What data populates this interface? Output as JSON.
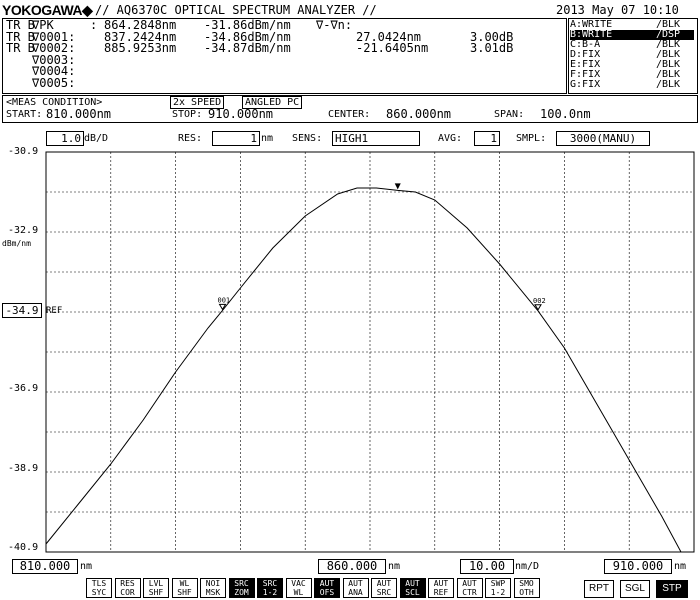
{
  "header": {
    "brand": "YOKOGAWA",
    "model": "// AQ6370C OPTICAL SPECTRUM ANALYZER //",
    "datetime": "2013 May 07 10:10"
  },
  "markers_panel": {
    "rows": [
      {
        "prefix": "TR B",
        "name": "∇PK",
        "sep": ":",
        "wl": "864.2848nm",
        "lvl": "-31.86dBm/nm",
        "extra1": "∇-∇n:",
        "extra2": "",
        "extra3": ""
      },
      {
        "prefix": "TR B",
        "name": "∇0001:",
        "sep": "",
        "wl": "837.2424nm",
        "lvl": "-34.86dBm/nm",
        "extra1": "",
        "extra2": "27.0424nm",
        "extra3": "3.00dB"
      },
      {
        "prefix": "TR B",
        "name": "∇0002:",
        "sep": "",
        "wl": "885.9253nm",
        "lvl": "-34.87dBm/nm",
        "extra1": "",
        "extra2": "-21.6405nm",
        "extra3": "3.01dB"
      },
      {
        "prefix": "",
        "name": "∇0003:",
        "sep": "",
        "wl": "",
        "lvl": "",
        "extra1": "",
        "extra2": "",
        "extra3": ""
      },
      {
        "prefix": "",
        "name": "∇0004:",
        "sep": "",
        "wl": "",
        "lvl": "",
        "extra1": "",
        "extra2": "",
        "extra3": ""
      },
      {
        "prefix": "",
        "name": "∇0005:",
        "sep": "",
        "wl": "",
        "lvl": "",
        "extra1": "",
        "extra2": "",
        "extra3": ""
      }
    ]
  },
  "traces": [
    {
      "name": "A:WRITE",
      "mode": "/BLK",
      "active": false
    },
    {
      "name": "B:WRITE",
      "mode": "/DSP",
      "active": true
    },
    {
      "name": "C:B-A",
      "mode": "/BLK",
      "active": false
    },
    {
      "name": "D:FIX",
      "mode": "/BLK",
      "active": false
    },
    {
      "name": "E:FIX",
      "mode": "/BLK",
      "active": false
    },
    {
      "name": "F:FIX",
      "mode": "/BLK",
      "active": false
    },
    {
      "name": "G:FIX",
      "mode": "/BLK",
      "active": false
    }
  ],
  "meas": {
    "label": "<MEAS CONDITION>",
    "speed": "2x SPEED",
    "connector": "ANGLED PC",
    "start_label": "START:",
    "start": "810.000nm",
    "stop_label": "STOP:",
    "stop": "910.000nm",
    "center_label": "CENTER:",
    "center": "860.000nm",
    "span_label": "SPAN:",
    "span": "100.0nm"
  },
  "settings": {
    "scale_value": "1.0",
    "scale_unit": "dB/D",
    "res_label": "RES:",
    "res_value": "1",
    "res_unit": "nm",
    "sens_label": "SENS:",
    "sens_value": "HIGH1",
    "avg_label": "AVG:",
    "avg_value": "1",
    "smpl_label": "SMPL:",
    "smpl_value": "3000(MANU)"
  },
  "yaxis": {
    "ticks": [
      "-30.9",
      "-32.9",
      "-34.9",
      "-36.9",
      "-38.9",
      "-40.9"
    ],
    "unit": "dBm/nm",
    "ref_label": "REF"
  },
  "xaxis": {
    "start": "810.000",
    "start_unit": "nm",
    "center": "860.000",
    "center_unit": "nm",
    "div": "10.00",
    "div_unit": "nm/D",
    "stop": "910.000",
    "stop_unit": "nm"
  },
  "chart_data": {
    "type": "line",
    "xlim": [
      810,
      910
    ],
    "ylim": [
      -40.9,
      -30.9
    ],
    "ylabel": "dBm/nm",
    "grid": true,
    "series": [
      {
        "x": [
          810,
          815,
          820,
          825,
          830,
          835,
          837.24,
          840,
          845,
          850,
          855,
          858,
          861,
          864.28,
          867,
          870,
          875,
          880,
          885.93,
          890,
          895,
          900,
          905,
          908,
          910
        ],
        "y": [
          -40.7,
          -39.7,
          -38.7,
          -37.6,
          -36.4,
          -35.3,
          -34.86,
          -34.3,
          -33.3,
          -32.5,
          -31.95,
          -31.8,
          -31.8,
          -31.86,
          -31.9,
          -32.1,
          -32.8,
          -33.7,
          -34.87,
          -35.8,
          -37.2,
          -38.6,
          -40.0,
          -40.9,
          -40.9
        ]
      }
    ],
    "markers": [
      {
        "label": "001",
        "x": 837.24,
        "y": -34.86
      },
      {
        "label": "002",
        "x": 885.93,
        "y": -34.87
      },
      {
        "label": "",
        "x": 864.28,
        "y": -31.86
      }
    ]
  },
  "softkeys": [
    {
      "l1": "TLS",
      "l2": "SYC",
      "on": false
    },
    {
      "l1": "RES",
      "l2": "COR",
      "on": false
    },
    {
      "l1": "LVL",
      "l2": "SHF",
      "on": false
    },
    {
      "l1": "WL",
      "l2": "SHF",
      "on": false
    },
    {
      "l1": "NOI",
      "l2": "MSK",
      "on": false
    },
    {
      "l1": "SRC",
      "l2": "ZOM",
      "on": true
    },
    {
      "l1": "SRC",
      "l2": "1-2",
      "on": true
    },
    {
      "l1": "VAC",
      "l2": "WL",
      "on": false
    },
    {
      "l1": "AUT",
      "l2": "OFS",
      "on": true
    },
    {
      "l1": "AUT",
      "l2": "ANA",
      "on": false
    },
    {
      "l1": "AUT",
      "l2": "SRC",
      "on": false
    },
    {
      "l1": "AUT",
      "l2": "SCL",
      "on": true
    },
    {
      "l1": "AUT",
      "l2": "REF",
      "on": false
    },
    {
      "l1": "AUT",
      "l2": "CTR",
      "on": false
    },
    {
      "l1": "SWP",
      "l2": "1-2",
      "on": false
    },
    {
      "l1": "SMO",
      "l2": "OTH",
      "on": false
    }
  ],
  "buttons": {
    "rpt": "RPT",
    "sgl": "SGL",
    "stp": "STP"
  }
}
